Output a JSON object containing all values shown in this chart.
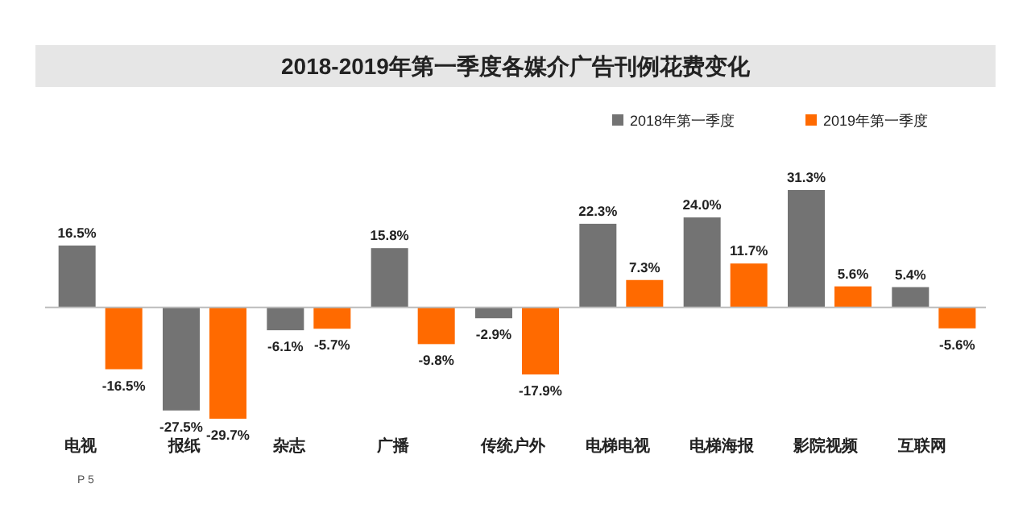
{
  "chart_data": {
    "type": "bar",
    "title": "2018-2019年第一季度各媒介广告刊例花费变化",
    "categories": [
      "电视",
      "报纸",
      "杂志",
      "广播",
      "传统户外",
      "电梯电视",
      "电梯海报",
      "影院视频",
      "互联网"
    ],
    "series": [
      {
        "name": "2018年第一季度",
        "color": "#737373",
        "values": [
          16.5,
          -27.5,
          -6.1,
          15.8,
          -2.9,
          22.3,
          24.0,
          31.3,
          5.4
        ],
        "value_labels": [
          "16.5%",
          "-27.5%",
          "-6.1%",
          "15.8%",
          "-2.9%",
          "22.3%",
          "24.0%",
          "31.3%",
          "5.4%"
        ]
      },
      {
        "name": "2019年第一季度",
        "color": "#ff6a00",
        "values": [
          -16.5,
          -29.7,
          -5.7,
          -9.8,
          -17.9,
          7.3,
          11.7,
          5.6,
          -5.6
        ],
        "value_labels": [
          "-16.5%",
          "-29.7%",
          "-5.7%",
          "-9.8%",
          "-17.9%",
          "7.3%",
          "11.7%",
          "5.6%",
          "-5.6%"
        ]
      }
    ],
    "legend": "top right",
    "annotations": [
      "P 5"
    ]
  }
}
